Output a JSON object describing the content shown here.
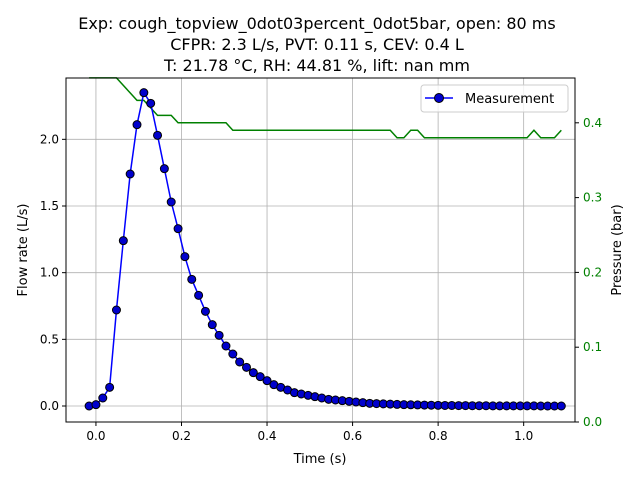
{
  "chart_data": {
    "type": "line",
    "title_lines": [
      "Exp: cough_topview_0dot03percent_0dot5bar, open: 80 ms",
      "CFPR: 2.3 L/s, PVT: 0.11 s, CEV: 0.4 L",
      "T: 21.78 °C, RH: 44.81 %, lift: nan mm"
    ],
    "xlabel": "Time (s)",
    "ylabel_left": "Flow rate (L/s)",
    "ylabel_right": "Pressure (bar)",
    "xlim": [
      -0.07,
      1.12
    ],
    "ylim_left": [
      -0.12,
      2.46
    ],
    "ylim_right": [
      0.0,
      0.4599
    ],
    "xticks": [
      0.0,
      0.2,
      0.4,
      0.6,
      0.8,
      1.0
    ],
    "xtick_labels": [
      "0.0",
      "0.2",
      "0.4",
      "0.6",
      "0.8",
      "1.0"
    ],
    "yticks_left": [
      0.0,
      0.5,
      1.0,
      1.5,
      2.0
    ],
    "ytick_labels_left": [
      "0.0",
      "0.5",
      "1.0",
      "1.5",
      "2.0"
    ],
    "yticks_right": [
      0.0,
      0.1,
      0.2,
      0.3,
      0.4
    ],
    "ytick_labels_right": [
      "0.0",
      "0.1",
      "0.2",
      "0.3",
      "0.4"
    ],
    "grid": true,
    "legend_position": "top-right",
    "colors": {
      "measurement_line": "#0000ff",
      "measurement_marker_face": "#0000cc",
      "measurement_marker_edge": "#000000",
      "pressure_line": "#008000",
      "right_axis_ticks": "#008000",
      "grid": "#b0b0b0"
    },
    "series": [
      {
        "name": "Measurement",
        "axis": "left",
        "x": [
          -0.016,
          0.0,
          0.016,
          0.032,
          0.048,
          0.064,
          0.08,
          0.096,
          0.112,
          0.128,
          0.144,
          0.16,
          0.176,
          0.192,
          0.208,
          0.224,
          0.24,
          0.256,
          0.272,
          0.288,
          0.304,
          0.32,
          0.336,
          0.352,
          0.368,
          0.384,
          0.4,
          0.416,
          0.432,
          0.448,
          0.464,
          0.48,
          0.496,
          0.512,
          0.528,
          0.544,
          0.56,
          0.576,
          0.592,
          0.608,
          0.624,
          0.64,
          0.656,
          0.672,
          0.688,
          0.704,
          0.72,
          0.736,
          0.752,
          0.768,
          0.784,
          0.8,
          0.816,
          0.832,
          0.848,
          0.864,
          0.88,
          0.896,
          0.912,
          0.928,
          0.944,
          0.96,
          0.976,
          0.992,
          1.008,
          1.024,
          1.04,
          1.056,
          1.072,
          1.088
        ],
        "values": [
          0.0,
          0.01,
          0.06,
          0.14,
          0.72,
          1.24,
          1.74,
          2.11,
          2.35,
          2.27,
          2.03,
          1.78,
          1.53,
          1.33,
          1.12,
          0.95,
          0.83,
          0.71,
          0.61,
          0.53,
          0.45,
          0.39,
          0.33,
          0.29,
          0.25,
          0.22,
          0.19,
          0.16,
          0.14,
          0.12,
          0.1,
          0.09,
          0.08,
          0.07,
          0.06,
          0.05,
          0.045,
          0.04,
          0.035,
          0.03,
          0.025,
          0.02,
          0.018,
          0.016,
          0.014,
          0.012,
          0.01,
          0.009,
          0.008,
          0.007,
          0.006,
          0.005,
          0.004,
          0.004,
          0.003,
          0.003,
          0.002,
          0.002,
          0.002,
          0.001,
          0.001,
          0.001,
          0.001,
          0.001,
          0.001,
          0.001,
          0.0,
          0.0,
          0.0,
          0.0
        ]
      },
      {
        "axis": "right",
        "x": [
          -0.016,
          0.0,
          0.016,
          0.032,
          0.048,
          0.064,
          0.08,
          0.096,
          0.112,
          0.128,
          0.144,
          0.16,
          0.176,
          0.192,
          0.208,
          0.224,
          0.24,
          0.256,
          0.272,
          0.288,
          0.304,
          0.32,
          0.336,
          0.352,
          0.368,
          0.384,
          0.4,
          0.416,
          0.432,
          0.448,
          0.464,
          0.48,
          0.496,
          0.512,
          0.528,
          0.544,
          0.56,
          0.576,
          0.592,
          0.608,
          0.624,
          0.64,
          0.656,
          0.672,
          0.688,
          0.704,
          0.72,
          0.736,
          0.752,
          0.768,
          0.784,
          0.8,
          0.816,
          0.832,
          0.848,
          0.864,
          0.88,
          0.896,
          0.912,
          0.928,
          0.944,
          0.96,
          0.976,
          0.992,
          1.008,
          1.024,
          1.04,
          1.056,
          1.072,
          1.088
        ],
        "values": [
          0.46,
          0.46,
          0.46,
          0.46,
          0.46,
          0.45,
          0.44,
          0.43,
          0.43,
          0.42,
          0.41,
          0.41,
          0.41,
          0.4,
          0.4,
          0.4,
          0.4,
          0.4,
          0.4,
          0.4,
          0.4,
          0.39,
          0.39,
          0.39,
          0.39,
          0.39,
          0.39,
          0.39,
          0.39,
          0.39,
          0.39,
          0.39,
          0.39,
          0.39,
          0.39,
          0.39,
          0.39,
          0.39,
          0.39,
          0.39,
          0.39,
          0.39,
          0.39,
          0.39,
          0.39,
          0.38,
          0.38,
          0.39,
          0.39,
          0.38,
          0.38,
          0.38,
          0.38,
          0.38,
          0.38,
          0.38,
          0.38,
          0.38,
          0.38,
          0.38,
          0.38,
          0.38,
          0.38,
          0.38,
          0.38,
          0.39,
          0.38,
          0.38,
          0.38,
          0.39
        ]
      }
    ]
  }
}
